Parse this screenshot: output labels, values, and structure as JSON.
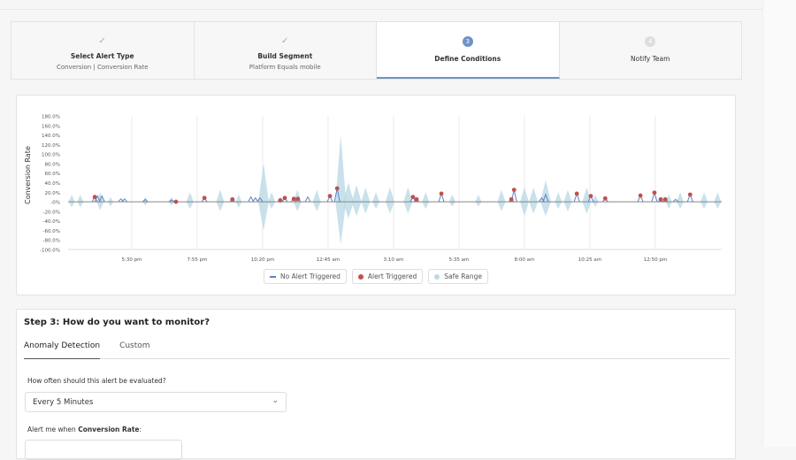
{
  "steps": [
    {
      "title": "Select Alert Type",
      "subtitle": "Conversion | Conversion Rate",
      "state": "done",
      "icon": "check-icon"
    },
    {
      "title": "Build Segment",
      "subtitle": "Platform Equals mobile",
      "state": "done",
      "icon": "check-icon"
    },
    {
      "title": "Define Conditions",
      "number": "3",
      "state": "active"
    },
    {
      "title": "Notify Team",
      "number": "4",
      "state": "upcoming"
    }
  ],
  "chart_data": {
    "type": "line",
    "ylabel": "Conversion Rate",
    "ylim": [
      -100,
      180
    ],
    "yticks": [
      "180.0%",
      "160.0%",
      "140.0%",
      "120.0%",
      "100.0%",
      "80.0%",
      "60.0%",
      "40.0%",
      "20.0%",
      "-0%",
      "-20.0%",
      "-40.0%",
      "-60.0%",
      "-80.0%",
      "-100.0%"
    ],
    "xticks": [
      "5:30 pm",
      "7:55 pm",
      "10:20 pm",
      "12:45 am",
      "3:10 am",
      "5:35 am",
      "8:00 am",
      "10:25 am",
      "12:50 pm"
    ],
    "xrange": [
      "3:09 pm",
      "3:17 pm"
    ],
    "grid": "vertical",
    "legend_position": "bottom",
    "colors": {
      "line": "#5b84c4",
      "baseline": "#888888",
      "alert": "#c0504d",
      "safe": "#bcd9e6"
    },
    "series": [
      {
        "name": "No Alert Triggered",
        "type": "line",
        "spikes": [
          [
            "4:14 pm",
            12
          ],
          [
            "4:24 pm",
            12
          ],
          [
            "5:06 pm",
            6
          ],
          [
            "5:14 pm",
            6
          ],
          [
            "6:00 pm",
            5
          ],
          [
            "6:58 pm",
            4
          ],
          [
            "9:54 pm",
            10
          ],
          [
            "10:04 pm",
            8
          ],
          [
            "10:14 pm",
            8
          ],
          [
            "12:00 am",
            10
          ],
          [
            "8:38 am",
            8
          ],
          [
            "8:47 am",
            15
          ],
          [
            "1:35 pm",
            5
          ]
        ]
      },
      {
        "name": "Alert Triggered",
        "type": "scatter",
        "points": [
          [
            "4:08 pm",
            10
          ],
          [
            "7:08 pm",
            0
          ],
          [
            "8:11 pm",
            8
          ],
          [
            "9:13 pm",
            5
          ],
          [
            "10:59 pm",
            3
          ],
          [
            "11:09 pm",
            8
          ],
          [
            "11:29 pm",
            6
          ],
          [
            "11:38 pm",
            6
          ],
          [
            "12:49 am",
            12
          ],
          [
            "1:05 am",
            28
          ],
          [
            "3:53 am",
            10
          ],
          [
            "4:01 am",
            5
          ],
          [
            "4:56 am",
            17
          ],
          [
            "7:31 am",
            5
          ],
          [
            "7:37 am",
            25
          ],
          [
            "9:56 am",
            17
          ],
          [
            "10:27 am",
            12
          ],
          [
            "10:59 am",
            7
          ],
          [
            "12:17 pm",
            13
          ],
          [
            "12:48 pm",
            19
          ],
          [
            "1:02 pm",
            5
          ],
          [
            "1:12 pm",
            5
          ],
          [
            "2:07 pm",
            15
          ]
        ]
      },
      {
        "name": "Safe Range",
        "type": "area",
        "bands": [
          [
            "3:17 pm",
            15,
            -12
          ],
          [
            "3:36 pm",
            15,
            -12
          ],
          [
            "4:20 pm",
            20,
            -18
          ],
          [
            "4:43 pm",
            10,
            -10
          ],
          [
            "6:00 pm",
            10,
            -8
          ],
          [
            "6:58 pm",
            10,
            -8
          ],
          [
            "7:39 pm",
            20,
            -15
          ],
          [
            "8:46 pm",
            25,
            -20
          ],
          [
            "9:27 pm",
            15,
            -12
          ],
          [
            "10:22 pm",
            80,
            -60
          ],
          [
            "10:40 pm",
            20,
            -15
          ],
          [
            "11:37 pm",
            25,
            -20
          ],
          [
            "12:20 am",
            25,
            -20
          ],
          [
            "1:13 am",
            140,
            -90
          ],
          [
            "1:30 am",
            40,
            -35
          ],
          [
            "1:48 am",
            35,
            -30
          ],
          [
            "2:08 am",
            30,
            -25
          ],
          [
            "2:31 am",
            20,
            -15
          ],
          [
            "3:02 am",
            30,
            -25
          ],
          [
            "3:42 am",
            30,
            -25
          ],
          [
            "4:21 am",
            20,
            -15
          ],
          [
            "5:20 am",
            15,
            -10
          ],
          [
            "6:18 am",
            15,
            -10
          ],
          [
            "7:09 am",
            25,
            -20
          ],
          [
            "8:00 am",
            30,
            -30
          ],
          [
            "8:20 am",
            30,
            -25
          ],
          [
            "8:47 am",
            45,
            -30
          ],
          [
            "9:15 am",
            20,
            -15
          ],
          [
            "9:36 am",
            25,
            -20
          ],
          [
            "10:18 am",
            30,
            -25
          ],
          [
            "10:37 am",
            15,
            -10
          ],
          [
            "1:20 pm",
            15,
            -15
          ],
          [
            "1:45 pm",
            20,
            -15
          ],
          [
            "2:38 pm",
            20,
            -15
          ],
          [
            "3:08 pm",
            20,
            -15
          ]
        ]
      }
    ]
  },
  "legend": {
    "no_alert": "No Alert Triggered",
    "alert": "Alert Triggered",
    "safe": "Safe Range"
  },
  "step3": {
    "heading": "Step 3: How do you want to monitor?",
    "tabs": [
      "Anomaly Detection",
      "Custom"
    ],
    "frequency_label": "How often should this alert be evaluated?",
    "frequency_value": "Every 5 Minutes",
    "alert_prefix": "Alert me when ",
    "alert_metric": "Conversion Rate",
    "alert_suffix": ":"
  }
}
